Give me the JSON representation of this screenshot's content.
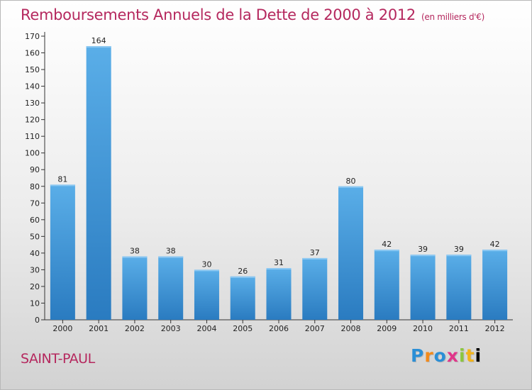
{
  "title": "Remboursements Annuels de la Dette de 2000 à 2012",
  "unit": "(en milliers d'€)",
  "commune": "SAINT-PAUL",
  "logo": [
    "P",
    "r",
    "o",
    "x",
    "i",
    "t",
    "i"
  ],
  "colors": {
    "bar_top": "#5aaee8",
    "bar_bottom": "#2a7bc0",
    "title": "#b5285e"
  },
  "chart_data": {
    "type": "bar",
    "categories": [
      "2000",
      "2001",
      "2002",
      "2003",
      "2004",
      "2005",
      "2006",
      "2007",
      "2008",
      "2009",
      "2010",
      "2011",
      "2012"
    ],
    "values": [
      81,
      164,
      38,
      38,
      30,
      26,
      31,
      37,
      80,
      42,
      39,
      39,
      42
    ],
    "title": "Remboursements Annuels de la Dette de 2000 à 2012",
    "xlabel": "",
    "ylabel": "",
    "ylim": [
      0,
      170
    ],
    "ytick_step": 10,
    "grid": false
  }
}
